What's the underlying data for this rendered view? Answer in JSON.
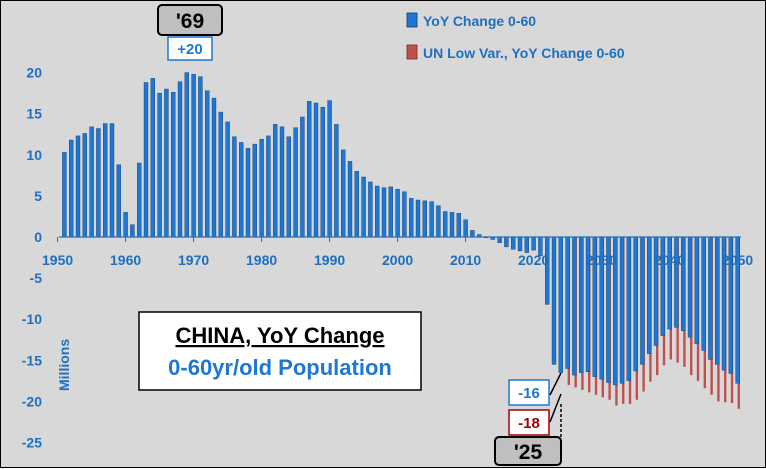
{
  "chart_data": {
    "type": "bar",
    "title": "CHINA, YoY Change",
    "subtitle": "0-60yr/old Population",
    "ylabel": "Millions",
    "ylim": [
      -25,
      20
    ],
    "yticks": [
      20,
      15,
      10,
      5,
      0,
      -5,
      -10,
      -15,
      -20,
      -25
    ],
    "xticks": [
      1950,
      1960,
      1970,
      1980,
      1990,
      2000,
      2010,
      2020,
      2030,
      2040,
      2050
    ],
    "legend_position": "top-right",
    "colors": {
      "series1": "#1f77d4",
      "series2": "#c0504d",
      "background": "#d8d8d8"
    },
    "series": [
      {
        "name": "YoY Change 0-60",
        "x": [
          1951,
          1952,
          1953,
          1954,
          1955,
          1956,
          1957,
          1958,
          1959,
          1960,
          1961,
          1962,
          1963,
          1964,
          1965,
          1966,
          1967,
          1968,
          1969,
          1970,
          1971,
          1972,
          1973,
          1974,
          1975,
          1976,
          1977,
          1978,
          1979,
          1980,
          1981,
          1982,
          1983,
          1984,
          1985,
          1986,
          1987,
          1988,
          1989,
          1990,
          1991,
          1992,
          1993,
          1994,
          1995,
          1996,
          1997,
          1998,
          1999,
          2000,
          2001,
          2002,
          2003,
          2004,
          2005,
          2006,
          2007,
          2008,
          2009,
          2010,
          2011,
          2012,
          2013,
          2014,
          2015,
          2016,
          2017,
          2018,
          2019,
          2020,
          2021,
          2022,
          2023,
          2024,
          2025,
          2026,
          2027,
          2028,
          2029,
          2030,
          2031,
          2032,
          2033,
          2034,
          2035,
          2036,
          2037,
          2038,
          2039,
          2040,
          2041,
          2042,
          2043,
          2044,
          2045,
          2046,
          2047,
          2048,
          2049,
          2050
        ],
        "values": [
          10.3,
          11.8,
          12.3,
          12.6,
          13.4,
          13.2,
          13.8,
          13.8,
          8.8,
          3.0,
          1.5,
          9.0,
          18.8,
          19.3,
          17.5,
          18.0,
          17.6,
          18.9,
          20.0,
          19.8,
          19.5,
          17.8,
          16.9,
          15.2,
          14.0,
          12.2,
          11.5,
          10.8,
          11.3,
          11.9,
          12.3,
          13.7,
          13.4,
          12.2,
          13.3,
          14.6,
          16.5,
          16.3,
          15.8,
          16.6,
          13.7,
          10.6,
          9.2,
          8.0,
          7.3,
          6.7,
          6.2,
          6.0,
          6.1,
          5.8,
          5.5,
          4.7,
          4.5,
          4.4,
          4.3,
          3.8,
          3.1,
          3.0,
          2.9,
          2.1,
          0.8,
          0.3,
          -0.1,
          -0.3,
          -0.7,
          -1.2,
          -1.5,
          -1.7,
          -1.9,
          -1.6,
          -2.3,
          -8.2,
          -15.5,
          -16.5,
          -16.0,
          -16.8,
          -16.5,
          -16.4,
          -17.0,
          -17.3,
          -17.7,
          -18.0,
          -17.8,
          -17.5,
          -16.3,
          -15.5,
          -14.2,
          -13.2,
          -12.0,
          -11.2,
          -11.0,
          -11.4,
          -12.2,
          -13.0,
          -13.8,
          -14.9,
          -15.5,
          -16.2,
          -16.6,
          -17.8
        ]
      },
      {
        "name": "UN Low Var., YoY Change 0-60",
        "x": [
          2025,
          2026,
          2027,
          2028,
          2029,
          2030,
          2031,
          2032,
          2033,
          2034,
          2035,
          2036,
          2037,
          2038,
          2039,
          2040,
          2041,
          2042,
          2043,
          2044,
          2045,
          2046,
          2047,
          2048,
          2049,
          2050
        ],
        "values": [
          -18.0,
          -18.3,
          -18.6,
          -18.9,
          -19.2,
          -19.5,
          -19.8,
          -20.5,
          -20.3,
          -20.3,
          -19.8,
          -18.8,
          -17.6,
          -16.8,
          -15.6,
          -14.9,
          -15.3,
          -15.8,
          -16.8,
          -17.5,
          -18.4,
          -19.2,
          -20.0,
          -20.1,
          -20.2,
          -20.9
        ]
      }
    ],
    "annotations": {
      "peak_year": "'69",
      "peak_value": "+20",
      "year_2025": "'25",
      "value_2025_series1": "-16",
      "value_2025_series2": "-18"
    }
  }
}
